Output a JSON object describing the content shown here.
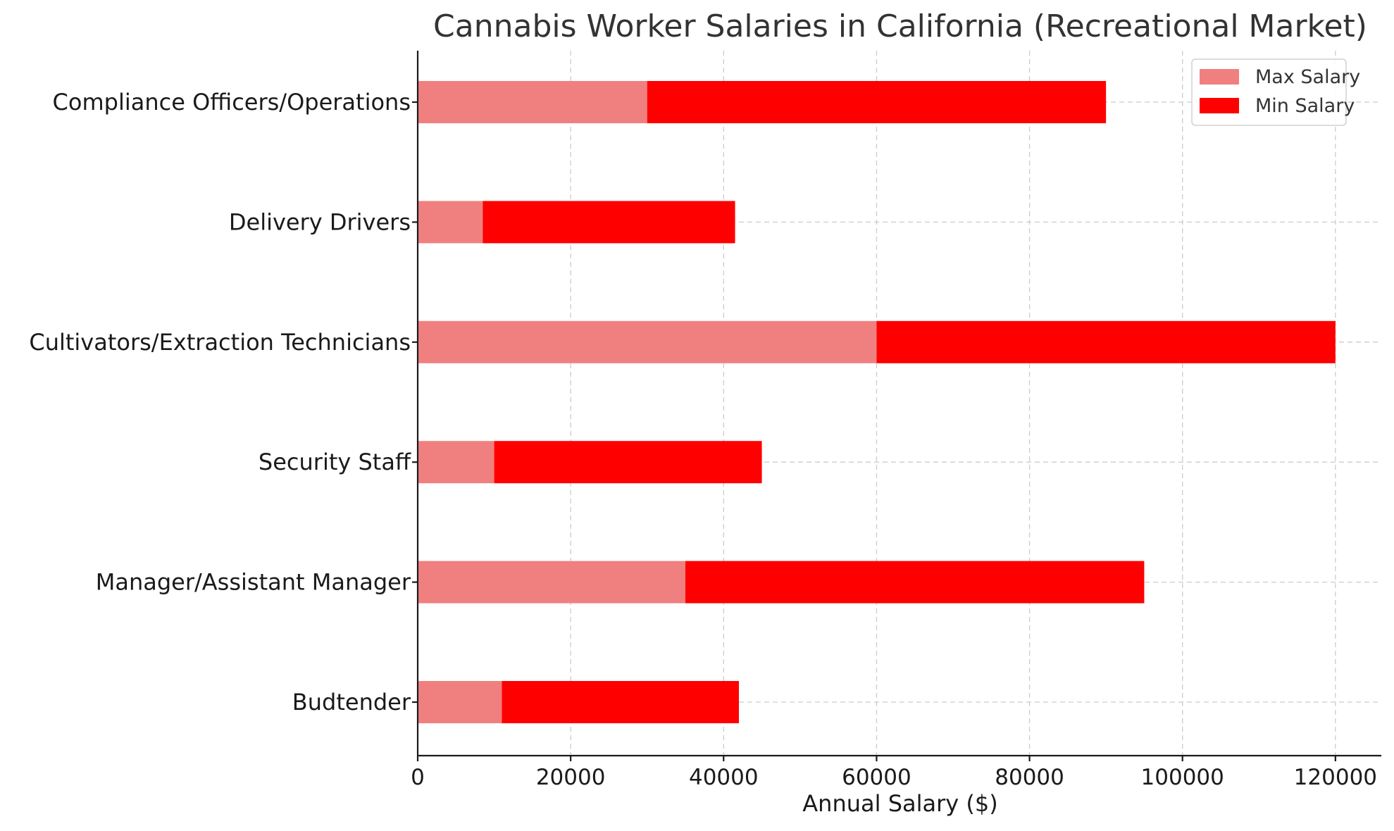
{
  "chart_data": {
    "type": "bar",
    "orientation": "horizontal",
    "stacked": true,
    "title": "Cannabis Worker Salaries in California (Recreational Market)",
    "xlabel": "Annual Salary ($)",
    "ylabel": "",
    "xlim": [
      0,
      126000
    ],
    "xticks": [
      0,
      20000,
      40000,
      60000,
      80000,
      100000,
      120000
    ],
    "grid": true,
    "legend_position": "top-right",
    "categories": [
      "Budtender",
      "Manager/Assistant Manager",
      "Security Staff",
      "Cultivators/Extraction Technicians",
      "Delivery Drivers",
      "Compliance Officers/Operations"
    ],
    "series": [
      {
        "name": "Max Salary",
        "color": "#f08080",
        "values": [
          11000,
          35000,
          10000,
          60000,
          8500,
          30000
        ]
      },
      {
        "name": "Min Salary",
        "color": "#ff0000",
        "values": [
          31000,
          60000,
          35000,
          60000,
          33000,
          60000
        ]
      }
    ]
  }
}
